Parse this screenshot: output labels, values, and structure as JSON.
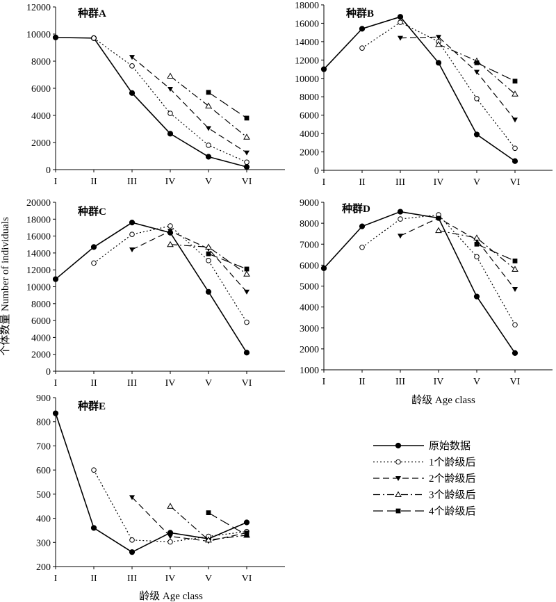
{
  "ylabel": "个体数量 Number of individuals",
  "xlabel_mid": "龄级 Age class",
  "xlabel_bottom": "龄级 Age class",
  "legend": [
    "原始数据",
    "1个龄级后",
    "2个龄级后",
    "3个龄级后",
    "4个龄级后"
  ],
  "chart_data": [
    {
      "type": "line",
      "title": "种群A",
      "categories": [
        "I",
        "II",
        "III",
        "IV",
        "V",
        "VI"
      ],
      "ylim": [
        0,
        12000
      ],
      "yticks": [
        0,
        2000,
        4000,
        6000,
        8000,
        10000,
        12000
      ],
      "series": [
        {
          "name": "原始数据",
          "values": [
            9750,
            9700,
            5650,
            2650,
            950,
            200
          ]
        },
        {
          "name": "1个龄级后",
          "values": [
            null,
            9700,
            7650,
            4150,
            1800,
            550
          ]
        },
        {
          "name": "2个龄级后",
          "values": [
            null,
            null,
            8300,
            5950,
            3050,
            1250
          ]
        },
        {
          "name": "3个龄级后",
          "values": [
            null,
            null,
            null,
            6900,
            4700,
            2400
          ]
        },
        {
          "name": "4个龄级后",
          "values": [
            null,
            null,
            null,
            null,
            5700,
            3800
          ]
        }
      ]
    },
    {
      "type": "line",
      "title": "种群B",
      "categories": [
        "I",
        "II",
        "III",
        "IV",
        "V",
        "VI"
      ],
      "ylim": [
        0,
        18000
      ],
      "yticks": [
        0,
        2000,
        4000,
        6000,
        8000,
        10000,
        12000,
        14000,
        16000,
        18000
      ],
      "series": [
        {
          "name": "原始数据",
          "values": [
            11000,
            15400,
            16700,
            11700,
            3900,
            1000
          ]
        },
        {
          "name": "1个龄级后",
          "values": [
            null,
            13300,
            16100,
            14000,
            7800,
            2400
          ]
        },
        {
          "name": "2个龄级后",
          "values": [
            null,
            null,
            14400,
            14500,
            10700,
            5500
          ]
        },
        {
          "name": "3个龄级后",
          "values": [
            null,
            null,
            null,
            13700,
            11900,
            8300
          ]
        },
        {
          "name": "4个龄级后",
          "values": [
            null,
            null,
            null,
            null,
            11700,
            9700
          ]
        }
      ]
    },
    {
      "type": "line",
      "title": "种群C",
      "categories": [
        "I",
        "II",
        "III",
        "IV",
        "V",
        "VI"
      ],
      "ylim": [
        0,
        20000
      ],
      "yticks": [
        0,
        2000,
        4000,
        6000,
        8000,
        10000,
        12000,
        14000,
        16000,
        18000,
        20000
      ],
      "series": [
        {
          "name": "原始数据",
          "values": [
            10900,
            14700,
            17600,
            16400,
            9400,
            2200
          ]
        },
        {
          "name": "1个龄级后",
          "values": [
            null,
            12800,
            16200,
            17200,
            13100,
            5800
          ]
        },
        {
          "name": "2个龄级后",
          "values": [
            null,
            null,
            14400,
            16600,
            14500,
            9400
          ]
        },
        {
          "name": "3个龄级后",
          "values": [
            null,
            null,
            null,
            15000,
            14700,
            11500
          ]
        },
        {
          "name": "4个龄级后",
          "values": [
            null,
            null,
            null,
            null,
            13900,
            12100
          ]
        }
      ]
    },
    {
      "type": "line",
      "title": "种群D",
      "categories": [
        "I",
        "II",
        "III",
        "IV",
        "V",
        "VI"
      ],
      "ylim": [
        1000,
        9000
      ],
      "yticks": [
        1000,
        2000,
        3000,
        4000,
        5000,
        6000,
        7000,
        8000,
        9000
      ],
      "series": [
        {
          "name": "原始数据",
          "values": [
            5850,
            7850,
            8550,
            8250,
            4500,
            1800
          ]
        },
        {
          "name": "1个龄级后",
          "values": [
            null,
            6850,
            8200,
            8400,
            6400,
            3150
          ]
        },
        {
          "name": "2个龄级后",
          "values": [
            null,
            null,
            7400,
            8250,
            7200,
            4850
          ]
        },
        {
          "name": "3个龄级后",
          "values": [
            null,
            null,
            null,
            7650,
            7300,
            5800
          ]
        },
        {
          "name": "4个龄级后",
          "values": [
            null,
            null,
            null,
            null,
            7000,
            6200
          ]
        }
      ]
    },
    {
      "type": "line",
      "title": "种群E",
      "categories": [
        "I",
        "II",
        "III",
        "IV",
        "V",
        "VI"
      ],
      "ylim": [
        200,
        900
      ],
      "yticks": [
        200,
        300,
        400,
        500,
        600,
        700,
        800,
        900
      ],
      "series": [
        {
          "name": "原始数据",
          "values": [
            835,
            360,
            260,
            340,
            315,
            383
          ]
        },
        {
          "name": "1个龄级后",
          "values": [
            null,
            600,
            310,
            302,
            325,
            345
          ]
        },
        {
          "name": "2个龄级后",
          "values": [
            null,
            null,
            487,
            325,
            305,
            340
          ]
        },
        {
          "name": "3个龄级后",
          "values": [
            null,
            null,
            null,
            450,
            310,
            330
          ]
        },
        {
          "name": "4个龄级后",
          "values": [
            null,
            null,
            null,
            null,
            423,
            330
          ]
        }
      ]
    }
  ]
}
